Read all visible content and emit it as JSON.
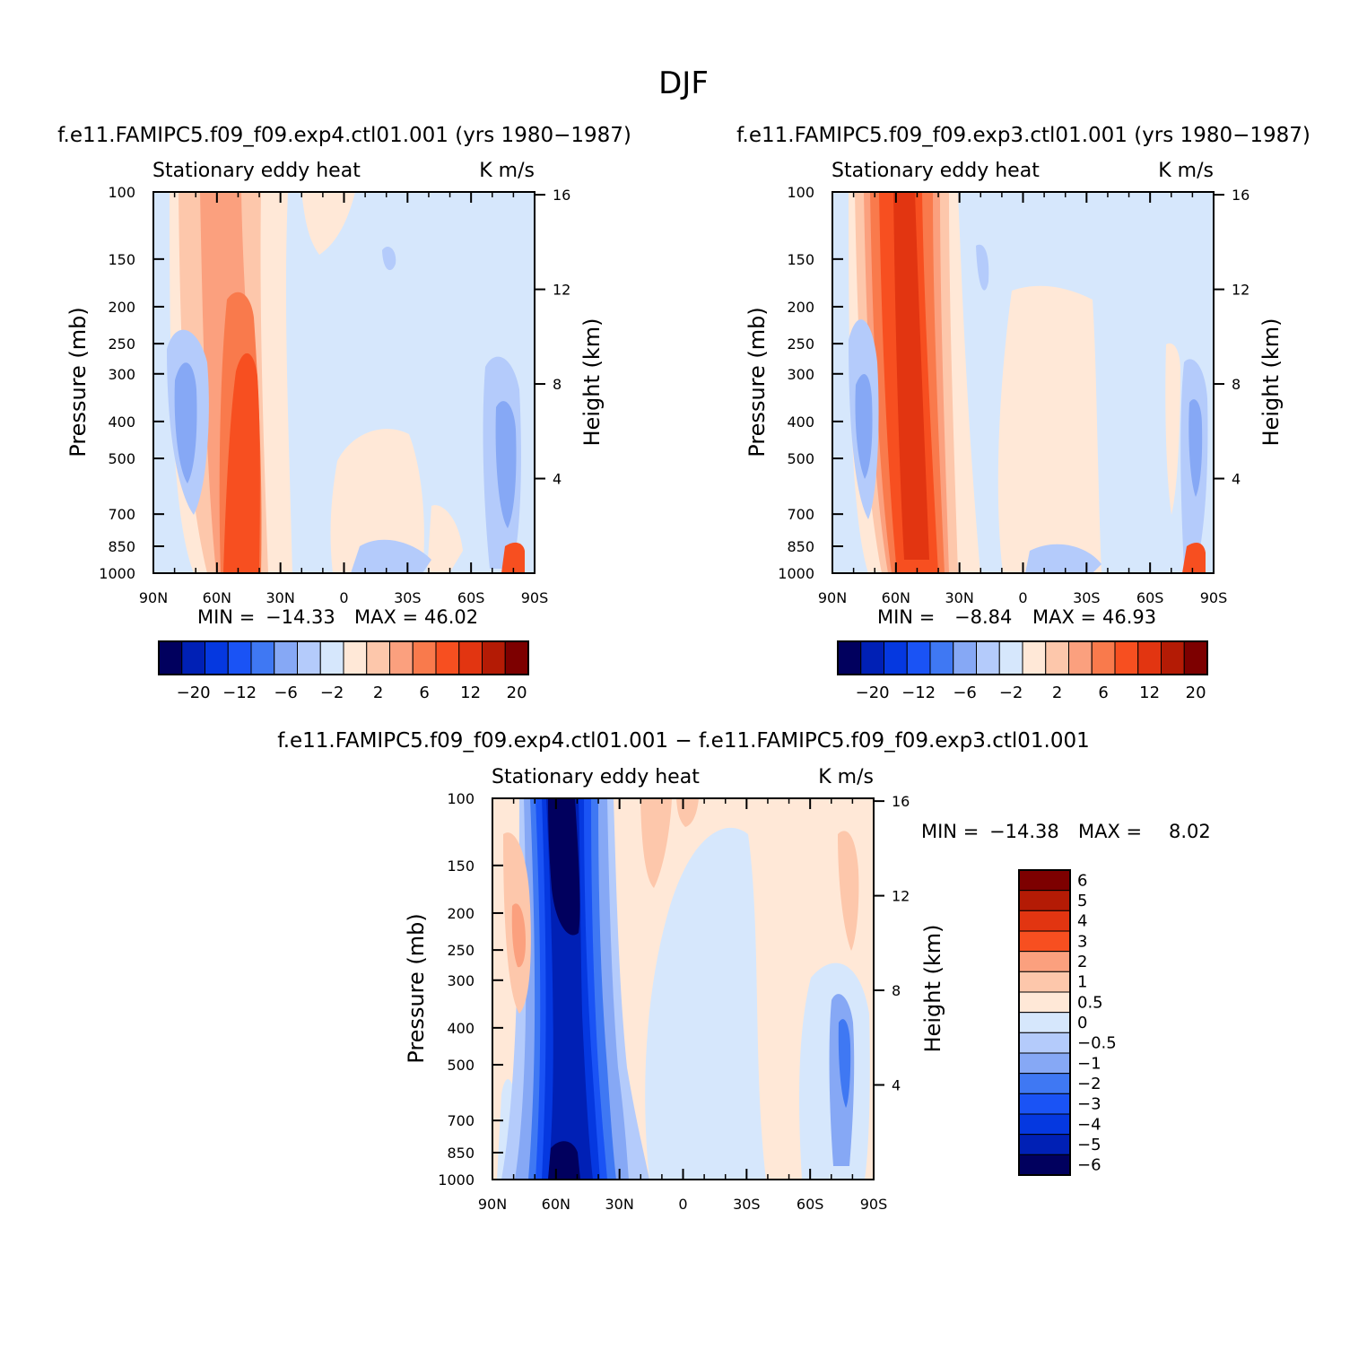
{
  "figure": {
    "title": "DJF"
  },
  "chart_data": [
    {
      "type": "heatmap",
      "id": "panel-left",
      "header": "f.e11.FAMIPC5.f09_f09.exp4.ctl01.001 (yrs 1980−1987)",
      "subtitle": "Stationary eddy heat",
      "units": "K m/s",
      "xlabel": "",
      "ylabel": "Pressure (mb)",
      "ylabel_right": "Height (km)",
      "x_ticks": [
        "90N",
        "60N",
        "30N",
        "0",
        "30S",
        "60S",
        "90S"
      ],
      "y_ticks": [
        "100",
        "150",
        "200",
        "250",
        "300",
        "400",
        "500",
        "700",
        "850",
        "1000"
      ],
      "y_right_ticks": [
        "16",
        "12",
        "8",
        "4"
      ],
      "ylim": [
        1000,
        100
      ],
      "stats": {
        "min_label": "MIN =",
        "min": "−14.33",
        "max_label": "MAX =",
        "max": "46.02"
      },
      "colorbar_labels": [
        "−20",
        "−12",
        "−6",
        "−2",
        "2",
        "6",
        "12",
        "20"
      ],
      "features": [
        {
          "lat": -65,
          "plev": 400,
          "value": -4,
          "note": "negative lobe 65-70N"
        },
        {
          "lat": -50,
          "plev": 600,
          "value": 14,
          "note": "positive core near 50-55N"
        },
        {
          "lat": 78,
          "plev": 450,
          "value": -4,
          "note": "negative lobe 75-80S"
        }
      ]
    },
    {
      "type": "heatmap",
      "id": "panel-right",
      "header": "f.e11.FAMIPC5.f09_f09.exp3.ctl01.001 (yrs 1980−1987)",
      "subtitle": "Stationary eddy heat",
      "units": "K m/s",
      "xlabel": "",
      "ylabel": "Pressure (mb)",
      "ylabel_right": "Height (km)",
      "x_ticks": [
        "90N",
        "60N",
        "30N",
        "0",
        "30S",
        "60S",
        "90S"
      ],
      "y_ticks": [
        "100",
        "150",
        "200",
        "250",
        "300",
        "400",
        "500",
        "700",
        "850",
        "1000"
      ],
      "y_right_ticks": [
        "16",
        "12",
        "8",
        "4"
      ],
      "ylim": [
        1000,
        100
      ],
      "stats": {
        "min_label": "MIN =",
        "min": "−8.84",
        "max_label": "MAX =",
        "max": "46.93"
      },
      "colorbar_labels": [
        "−20",
        "−12",
        "−6",
        "−2",
        "2",
        "6",
        "12",
        "20"
      ],
      "features": [
        {
          "lat": -65,
          "plev": 400,
          "value": -3,
          "note": "negative lobe 65-70N"
        },
        {
          "lat": -55,
          "plev": 500,
          "value": 16,
          "note": "positive core 50-60N, full column"
        },
        {
          "lat": 78,
          "plev": 450,
          "value": -3,
          "note": "negative lobe 75-80S"
        }
      ]
    },
    {
      "type": "heatmap",
      "id": "panel-diff",
      "header": "f.e11.FAMIPC5.f09_f09.exp4.ctl01.001 − f.e11.FAMIPC5.f09_f09.exp3.ctl01.001",
      "subtitle": "Stationary eddy heat",
      "units": "K m/s",
      "xlabel": "",
      "ylabel": "Pressure (mb)",
      "ylabel_right": "Height (km)",
      "x_ticks": [
        "90N",
        "60N",
        "30N",
        "0",
        "30S",
        "60S",
        "90S"
      ],
      "y_ticks": [
        "100",
        "150",
        "200",
        "250",
        "300",
        "400",
        "500",
        "700",
        "850",
        "1000"
      ],
      "y_right_ticks": [
        "16",
        "12",
        "8",
        "4"
      ],
      "ylim": [
        1000,
        100
      ],
      "stats": {
        "min_label": "MIN =",
        "min": "−14.38",
        "max_label": "MAX =",
        "max": "8.02"
      },
      "colorbar_labels": [
        "6",
        "5",
        "4",
        "3",
        "2",
        "1",
        "0.5",
        "0",
        "−0.5",
        "−1",
        "−2",
        "−3",
        "−4",
        "−5",
        "−6"
      ],
      "features": [
        {
          "lat": -78,
          "plev": 220,
          "value": 2.5,
          "note": "positive lobe near 80N"
        },
        {
          "lat": -58,
          "plev": 300,
          "value": -6,
          "note": "strong negative column 55-65N"
        },
        {
          "lat": -20,
          "plev": 150,
          "value": 1.5,
          "note": "positive upper lobe near 20N"
        },
        {
          "lat": 78,
          "plev": 450,
          "value": -3,
          "note": "negative lobe 75-80S"
        }
      ]
    }
  ],
  "colorscales": {
    "twelve_level": [
      "#01005e",
      "#0020b5",
      "#0538e0",
      "#1a53f5",
      "#3f78f3",
      "#86a8f5",
      "#b4cbfb",
      "#d6e7fc",
      "#ffe8d7",
      "#fdc7ab",
      "#fba07e",
      "#f97a4c",
      "#f74f20",
      "#e23511",
      "#b41b05",
      "#7d0000"
    ],
    "diff_level": [
      "#7d0000",
      "#b41b05",
      "#e23511",
      "#f74f20",
      "#fba07e",
      "#fdc7ab",
      "#ffe8d7",
      "#d6e7fc",
      "#b4cbfb",
      "#86a8f5",
      "#3f78f3",
      "#1a53f5",
      "#0538e0",
      "#0020b5",
      "#01005e"
    ]
  }
}
